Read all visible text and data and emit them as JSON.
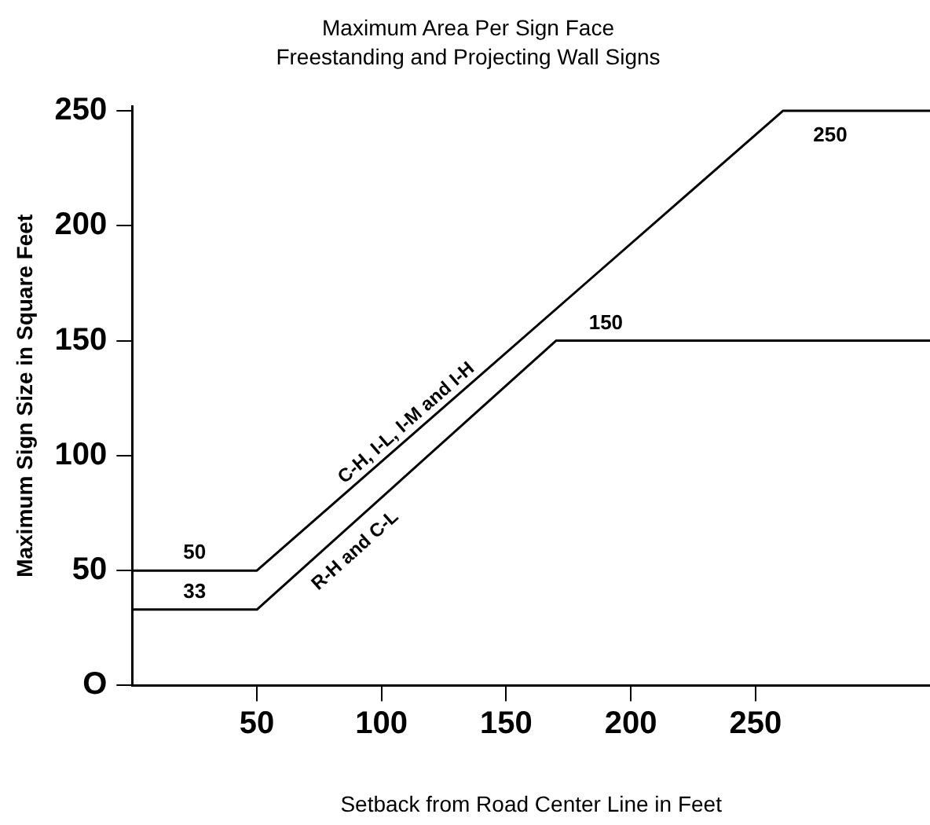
{
  "chart_data": {
    "type": "line",
    "title": "Maximum Area Per Sign Face",
    "subtitle": "Freestanding and Projecting Wall Signs",
    "xlabel": "Setback from Road Center Line in Feet",
    "ylabel": "Maximum Sign Size in Square Feet",
    "series": [
      {
        "name": "C-H, I-L, I-M and I-H",
        "color": "#000000",
        "x": [
          0,
          50,
          261,
          320
        ],
        "values": [
          50,
          50,
          250,
          250
        ]
      },
      {
        "name": "R-H and C-L",
        "color": "#000000",
        "x": [
          0,
          50,
          170,
          320
        ],
        "values": [
          33,
          33,
          150,
          150
        ]
      }
    ],
    "xlim": [
      0,
      320
    ],
    "xticks": [
      50,
      100,
      150,
      200,
      250
    ],
    "ylim": [
      0,
      252
    ],
    "yticks": [
      {
        "value": 0,
        "label": "O"
      },
      50,
      100,
      150,
      200,
      250
    ],
    "annotations": [
      {
        "text": "50",
        "x": 25,
        "y": 50
      },
      {
        "text": "33",
        "x": 25,
        "y": 33
      },
      {
        "text": "150",
        "x": 190,
        "y": 150
      },
      {
        "text": "250",
        "x": 280,
        "y": 250
      }
    ],
    "grid": false,
    "legend": false,
    "marker": "none",
    "line_style": "solid"
  }
}
